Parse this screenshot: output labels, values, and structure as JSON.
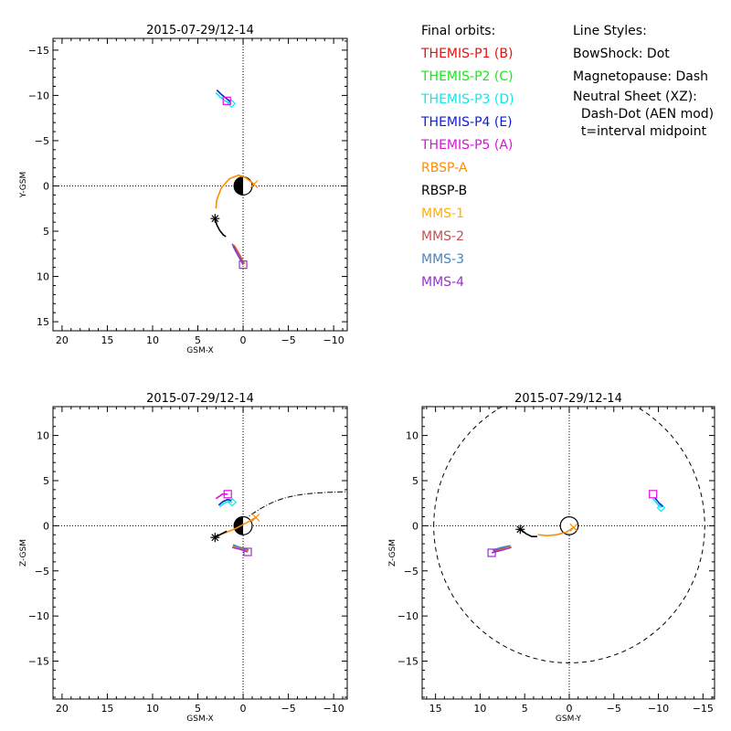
{
  "legend": {
    "header": "Final orbits:",
    "items": [
      {
        "label": "THEMIS-P1 (B)",
        "color": "#e81010"
      },
      {
        "label": "THEMIS-P2 (C)",
        "color": "#18e818"
      },
      {
        "label": "THEMIS-P3 (D)",
        "color": "#10e8e8"
      },
      {
        "label": "THEMIS-P4 (E)",
        "color": "#1020d0"
      },
      {
        "label": "THEMIS-P5 (A)",
        "color": "#e010e0"
      },
      {
        "label": "RBSP-A",
        "color": "#ff8c00"
      },
      {
        "label": "RBSP-B",
        "color": "#000000"
      },
      {
        "label": "MMS-1",
        "color": "#ffb000"
      },
      {
        "label": "MMS-2",
        "color": "#c85050"
      },
      {
        "label": "MMS-3",
        "color": "#4a84c0"
      },
      {
        "label": "MMS-4",
        "color": "#9a30d0"
      }
    ]
  },
  "line_styles": {
    "header": "Line Styles:",
    "bowshock": "BowShock: Dot",
    "magnetopause": "Magnetopause: Dash",
    "neutral_sheet": "Neutral Sheet (XZ):",
    "neutral_sheet_model": "  Dash-Dot (AEN mod)",
    "time_note": "  t=interval midpoint"
  },
  "chart_data": [
    {
      "type": "scatter",
      "title": "2015-07-29/12-14",
      "xlabel": "GSM-X",
      "ylabel": "Y-GSM",
      "xlim": [
        21,
        -11.5
      ],
      "ylim": [
        16,
        -16.3
      ],
      "xticks": [
        20,
        15,
        10,
        5,
        0,
        -5,
        -10
      ],
      "yticks": [
        -15,
        -10,
        -5,
        0,
        5,
        10,
        15
      ],
      "bowshock": "dotted",
      "magnetopause": "dashed",
      "series": [
        {
          "name": "RBSP-A",
          "x": [
            3.0,
            2.9,
            2.4,
            1.5,
            0.5,
            -0.3,
            -1.2
          ],
          "y": [
            2.5,
            1.5,
            0.2,
            -0.8,
            -1.2,
            -0.9,
            -0.2
          ]
        },
        {
          "name": "RBSP-B",
          "x": [
            3.1,
            2.9,
            2.6,
            2.2,
            1.9
          ],
          "y": [
            3.6,
            4.3,
            4.9,
            5.4,
            5.6
          ]
        },
        {
          "name": "THEMIS-P3 (D)",
          "x": [
            3.0,
            2.5,
            2.0,
            1.3
          ],
          "y": [
            -10.3,
            -9.8,
            -9.4,
            -9.1
          ]
        },
        {
          "name": "THEMIS-P4 (E)",
          "x": [
            2.9,
            2.4,
            1.9,
            1.4
          ],
          "y": [
            -10.6,
            -10.1,
            -9.7,
            -9.3
          ]
        },
        {
          "name": "THEMIS-P5 (A)",
          "x": [
            1.8
          ],
          "y": [
            -9.4
          ]
        },
        {
          "name": "MMS-1",
          "x": [
            1.0,
            0.5,
            -0.2
          ],
          "y": [
            6.5,
            7.4,
            8.6
          ]
        },
        {
          "name": "MMS-2",
          "x": [
            1.0,
            0.4,
            -0.1
          ],
          "y": [
            6.6,
            7.6,
            8.6
          ]
        },
        {
          "name": "MMS-3",
          "x": [
            1.1,
            0.6,
            0.0
          ],
          "y": [
            6.7,
            7.6,
            8.5
          ]
        },
        {
          "name": "MMS-4",
          "x": [
            1.2,
            0.6,
            0.0
          ],
          "y": [
            6.4,
            7.6,
            8.7
          ]
        }
      ]
    },
    {
      "type": "scatter",
      "title": "2015-07-29/12-14",
      "xlabel": "GSM-X",
      "ylabel": "Z-GSM",
      "xlim": [
        21,
        -11.5
      ],
      "ylim": [
        -19.2,
        13.2
      ],
      "xticks": [
        20,
        15,
        10,
        5,
        0,
        -5,
        -10
      ],
      "yticks": [
        -15,
        -10,
        -5,
        0,
        5,
        10
      ],
      "bowshock": "dotted",
      "magnetopause": "dashed",
      "neutral_sheet": "dash-dot",
      "series": [
        {
          "name": "RBSP-A",
          "x": [
            3.2,
            2.0,
            0.8,
            -0.5,
            -1.4
          ],
          "y": [
            -1.2,
            -0.8,
            -0.3,
            0.4,
            0.9
          ]
        },
        {
          "name": "RBSP-B",
          "x": [
            3.1,
            2.4,
            1.8
          ],
          "y": [
            -1.3,
            -0.9,
            -0.6
          ]
        },
        {
          "name": "THEMIS-P3 (D)",
          "x": [
            2.6,
            2.1,
            1.6,
            1.2
          ],
          "y": [
            2.1,
            2.5,
            2.7,
            2.6
          ]
        },
        {
          "name": "THEMIS-P4 (E)",
          "x": [
            2.7,
            2.2,
            1.7,
            1.3
          ],
          "y": [
            2.3,
            2.7,
            2.9,
            2.8
          ]
        },
        {
          "name": "THEMIS-P5 (A)",
          "x": [
            3.0,
            2.3,
            1.7
          ],
          "y": [
            3.0,
            3.5,
            3.5
          ]
        },
        {
          "name": "MMS-1",
          "x": [
            1.2,
            0.4,
            -0.6
          ],
          "y": [
            -2.3,
            -2.5,
            -2.8
          ]
        },
        {
          "name": "MMS-2",
          "x": [
            1.1,
            0.3,
            -0.6
          ],
          "y": [
            -2.2,
            -2.4,
            -2.7
          ]
        },
        {
          "name": "MMS-3",
          "x": [
            1.1,
            0.4,
            -0.4
          ],
          "y": [
            -2.1,
            -2.4,
            -2.6
          ]
        },
        {
          "name": "MMS-4",
          "x": [
            1.2,
            0.4,
            -0.5
          ],
          "y": [
            -2.4,
            -2.6,
            -2.9
          ]
        }
      ]
    },
    {
      "type": "scatter",
      "title": "2015-07-29/12-14",
      "xlabel": "GSM-Y",
      "ylabel": "Z-GSM",
      "xlim": [
        16.5,
        -16.3
      ],
      "ylim": [
        -19.2,
        13.2
      ],
      "xticks": [
        15,
        10,
        5,
        0,
        -5,
        -10,
        -15
      ],
      "yticks": [
        -15,
        -10,
        -5,
        0,
        5,
        10
      ],
      "bowshock": "dotted",
      "magnetopause": "dashed",
      "series": [
        {
          "name": "RBSP-A",
          "x": [
            3.5,
            2.5,
            1.4,
            0.3,
            -0.5
          ],
          "y": [
            -1.0,
            -1.1,
            -1.0,
            -0.7,
            -0.2
          ]
        },
        {
          "name": "RBSP-B",
          "x": [
            5.5,
            4.8,
            4.2,
            3.6
          ],
          "y": [
            -0.4,
            -0.9,
            -1.2,
            -1.2
          ]
        },
        {
          "name": "THEMIS-P3 (D)",
          "x": [
            -9.4,
            -9.9,
            -10.3
          ],
          "y": [
            3.0,
            2.4,
            2.0
          ]
        },
        {
          "name": "THEMIS-P4 (E)",
          "x": [
            -9.6,
            -10.1,
            -10.5
          ],
          "y": [
            3.1,
            2.5,
            2.1
          ]
        },
        {
          "name": "THEMIS-P5 (A)",
          "x": [
            -9.4
          ],
          "y": [
            3.5
          ]
        },
        {
          "name": "MMS-1",
          "x": [
            6.5,
            7.4,
            8.6
          ],
          "y": [
            -2.3,
            -2.6,
            -2.9
          ]
        },
        {
          "name": "MMS-2",
          "x": [
            6.6,
            7.5,
            8.5
          ],
          "y": [
            -2.2,
            -2.5,
            -2.8
          ]
        },
        {
          "name": "MMS-3",
          "x": [
            6.6,
            7.6,
            8.6
          ],
          "y": [
            -2.2,
            -2.4,
            -2.7
          ]
        },
        {
          "name": "MMS-4",
          "x": [
            6.5,
            7.5,
            8.7
          ],
          "y": [
            -2.4,
            -2.7,
            -3.0
          ]
        }
      ]
    }
  ]
}
